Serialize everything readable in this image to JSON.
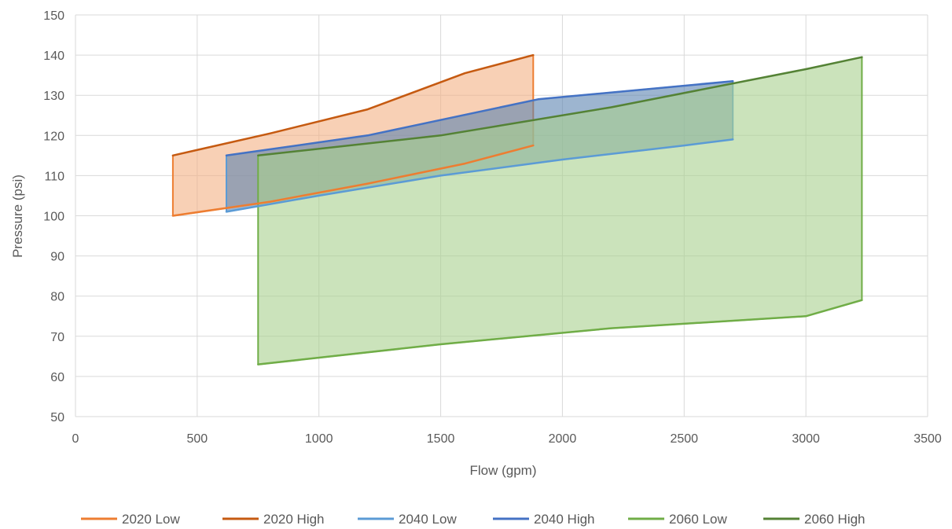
{
  "chart_data": {
    "type": "area",
    "xlabel": "Flow (gpm)",
    "ylabel": "Pressure (psi)",
    "xlim": [
      0,
      3500
    ],
    "ylim": [
      50,
      150
    ],
    "xticks": [
      0,
      500,
      1000,
      1500,
      2000,
      2500,
      3000,
      3500
    ],
    "yticks": [
      50,
      60,
      70,
      80,
      90,
      100,
      110,
      120,
      130,
      140,
      150
    ],
    "grid": true,
    "legend_position": "bottom",
    "series": [
      {
        "name": "2020 Low",
        "color": "#ED7D31",
        "x": [
          400,
          800,
          1200,
          1600,
          1880
        ],
        "y": [
          100,
          103.5,
          108,
          113,
          117.5
        ]
      },
      {
        "name": "2020 High",
        "color": "#C55A11",
        "x": [
          400,
          800,
          1200,
          1600,
          1880
        ],
        "y": [
          115,
          120.5,
          126.5,
          135.5,
          140
        ]
      },
      {
        "name": "2040 Low",
        "color": "#5B9BD5",
        "x": [
          620,
          1000,
          1500,
          2000,
          2500,
          2700
        ],
        "y": [
          101,
          105,
          110,
          114,
          117.5,
          119
        ]
      },
      {
        "name": "2040 High",
        "color": "#4472C4",
        "x": [
          620,
          1200,
          1900,
          2700
        ],
        "y": [
          115,
          120,
          129,
          133.5
        ]
      },
      {
        "name": "2060 Low",
        "color": "#70AD47",
        "x": [
          750,
          1500,
          2200,
          3000,
          3230
        ],
        "y": [
          63,
          68,
          72,
          75,
          79
        ]
      },
      {
        "name": "2060 High",
        "color": "#548235",
        "x": [
          750,
          1500,
          2200,
          3000,
          3230
        ],
        "y": [
          115,
          120,
          127,
          136.5,
          139.5
        ]
      }
    ],
    "areas": [
      {
        "low": "2020 Low",
        "high": "2020 High",
        "fill": "#F4B183"
      },
      {
        "low": "2040 Low",
        "high": "2040 High",
        "fill": "#5B84B1"
      },
      {
        "low": "2060 Low",
        "high": "2060 High",
        "fill": "#A9D18E"
      }
    ]
  }
}
